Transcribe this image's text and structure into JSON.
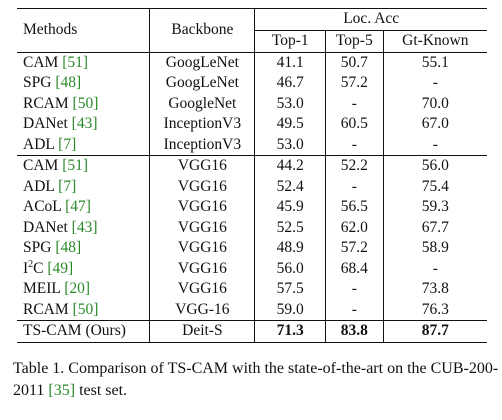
{
  "table": {
    "headers": {
      "methods": "Methods",
      "backbone": "Backbone",
      "loc_acc": "Loc. Acc",
      "top1": "Top-1",
      "top5": "Top-5",
      "gt_known": "Gt-Known"
    },
    "group1": [
      {
        "method": "CAM",
        "ref": "[51]",
        "backbone": "GoogLeNet",
        "top1": "41.1",
        "top5": "50.7",
        "gt": "55.1"
      },
      {
        "method": "SPG",
        "ref": "[48]",
        "backbone": "GoogLeNet",
        "top1": "46.7",
        "top5": "57.2",
        "gt": "-"
      },
      {
        "method": "RCAM",
        "ref": "[50]",
        "backbone": "GoogleNet",
        "top1": "53.0",
        "top5": "-",
        "gt": "70.0"
      },
      {
        "method": "DANet",
        "ref": "[43]",
        "backbone": "InceptionV3",
        "top1": "49.5",
        "top5": "60.5",
        "gt": "67.0"
      },
      {
        "method": "ADL",
        "ref": "[7]",
        "backbone": "InceptionV3",
        "top1": "53.0",
        "top5": "-",
        "gt": "-"
      }
    ],
    "group2": [
      {
        "method": "CAM",
        "ref": "[51]",
        "backbone": "VGG16",
        "top1": "44.2",
        "top5": "52.2",
        "gt": "56.0"
      },
      {
        "method": "ADL",
        "ref": "[7]",
        "backbone": "VGG16",
        "top1": "52.4",
        "top5": "-",
        "gt": "75.4"
      },
      {
        "method": "ACoL",
        "ref": "[47]",
        "backbone": "VGG16",
        "top1": "45.9",
        "top5": "56.5",
        "gt": "59.3"
      },
      {
        "method": "DANet",
        "ref": "[43]",
        "backbone": "VGG16",
        "top1": "52.5",
        "top5": "62.0",
        "gt": "67.7"
      },
      {
        "method": "SPG",
        "ref": "[48]",
        "backbone": "VGG16",
        "top1": "48.9",
        "top5": "57.2",
        "gt": "58.9"
      },
      {
        "method_prefix": "I",
        "method_sup": "2",
        "method": "C",
        "ref": "[49]",
        "backbone": "VGG16",
        "top1": "56.0",
        "top5": "68.4",
        "gt": "-"
      },
      {
        "method": "MEIL",
        "ref": "[20]",
        "backbone": "VGG16",
        "top1": "57.5",
        "top5": "-",
        "gt": "73.8"
      },
      {
        "method": "RCAM",
        "ref": "[50]",
        "backbone": "VGG-16",
        "top1": "59.0",
        "top5": "-",
        "gt": "76.3"
      }
    ],
    "ours": {
      "method": "TS-CAM (Ours)",
      "backbone": "Deit-S",
      "top1": "71.3",
      "top5": "83.8",
      "gt": "87.7"
    }
  },
  "caption": {
    "part1": "Table 1. Comparison of TS-CAM with the state-of-the-art on the CUB-200-2011 ",
    "ref": "[35]",
    "part2": " test set."
  },
  "colors": {
    "citation": "#2a8a2a",
    "text": "#111111"
  }
}
